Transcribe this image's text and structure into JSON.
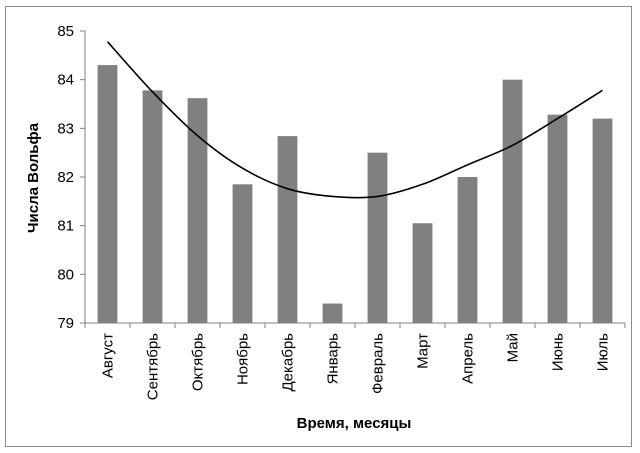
{
  "chart_data": {
    "type": "bar",
    "title": "",
    "xlabel": "Время, месяцы",
    "ylabel": "Числа Вольфа",
    "categories": [
      "Август",
      "Сентябрь",
      "Октябрь",
      "Ноябрь",
      "Декабрь",
      "Январь",
      "Февраль",
      "Март",
      "Апрель",
      "Май",
      "Июнь",
      "Июль"
    ],
    "values": [
      84.3,
      83.78,
      83.62,
      81.85,
      82.84,
      79.4,
      82.5,
      81.05,
      82.0,
      84.0,
      83.28,
      83.2
    ],
    "trendline": {
      "type": "polynomial",
      "values": [
        84.78,
        83.75,
        82.85,
        82.18,
        81.76,
        81.6,
        81.6,
        81.85,
        82.25,
        82.65,
        83.2,
        83.78
      ]
    },
    "ylim": [
      79,
      85
    ],
    "yticks": [
      79,
      80,
      81,
      82,
      83,
      84,
      85
    ],
    "grid": false,
    "legend": "none",
    "colors": {
      "bar": "#808080",
      "trend": "#000000",
      "axis": "#808080"
    }
  }
}
